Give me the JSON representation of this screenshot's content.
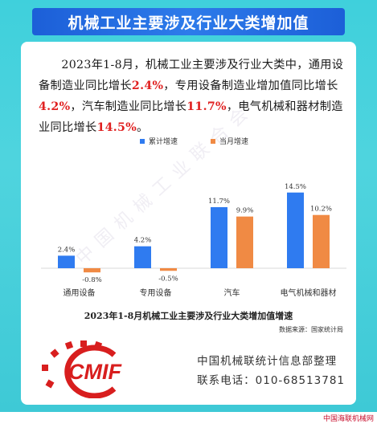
{
  "header": {
    "title": "机械工业主要涉及行业大类增加值"
  },
  "paragraph": {
    "p1": "2023年1-8月，机械工业主要涉及行业大类中，通用设备制造业同比增长",
    "v1": "2.4%",
    "p2": "，专用设备制造业增加值同比增长",
    "v2": "4.2%",
    "p3": "，汽车制造业同比增长",
    "v3": "11.7%",
    "p4": "，电气机械和器材制造业同比增长",
    "v4": "14.5%",
    "p5": "。"
  },
  "watermark": "中国机械工业联合会",
  "chart_data": {
    "type": "bar",
    "title": "2023年1-8月机械工业主要涉及行业大类增加值增速",
    "categories": [
      "通用设备",
      "专用设备",
      "汽车",
      "电气机械和器材"
    ],
    "series": [
      {
        "name": "累计增速",
        "values": [
          2.4,
          4.2,
          11.7,
          14.5
        ],
        "labels": [
          "2.4%",
          "4.2%",
          "11.7%",
          "14.5%"
        ]
      },
      {
        "name": "当月增速",
        "values": [
          -0.8,
          -0.5,
          9.9,
          10.2
        ],
        "labels": [
          "-0.8%",
          "-0.5%",
          "9.9%",
          "10.2%"
        ]
      }
    ],
    "legend_position": "top",
    "grid": false
  },
  "source": "数据来源：国家统计局",
  "logo_text": "CMIF",
  "org": {
    "line1": "中国机械联统计信息部整理",
    "line2": "联系电话：010-68513781"
  },
  "footer": "中国海联机械网",
  "colors": {
    "series1": "#2f7bf0",
    "series2": "#f08a44",
    "highlight": "#e02020",
    "brand": "#1c5fd8",
    "logo": "#d81e1e"
  }
}
